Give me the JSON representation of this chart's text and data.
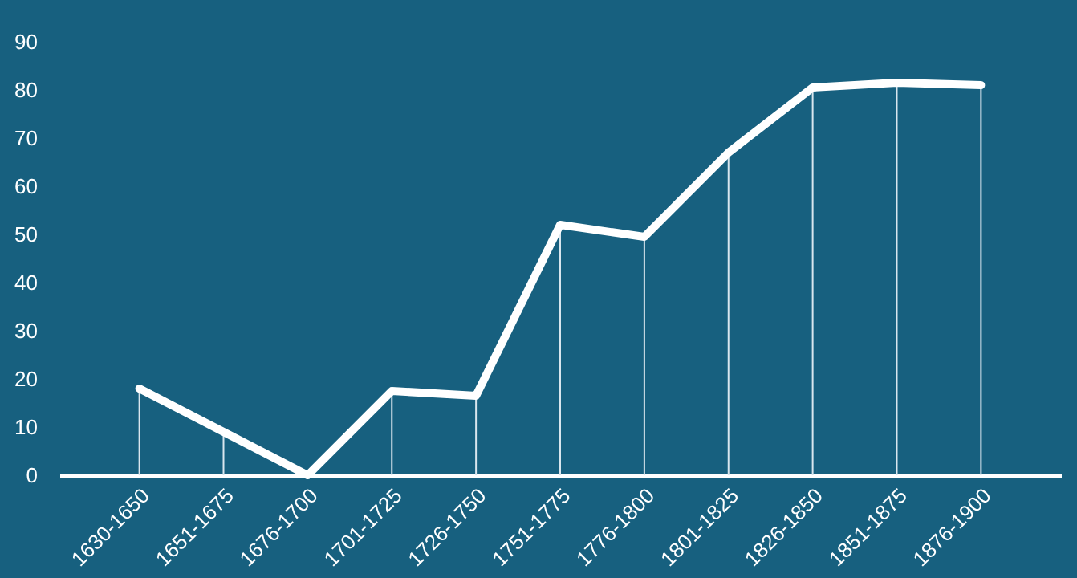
{
  "chart_data": {
    "type": "line",
    "categories": [
      "1630-1650",
      "1651-1675",
      "1676-1700",
      "1701-1725",
      "1726-1750",
      "1751-1775",
      "1776-1800",
      "1801-1825",
      "1826-1850",
      "1851-1875",
      "1876-1900"
    ],
    "series": [
      {
        "color": "#ffffff",
        "values": [
          18,
          9,
          0,
          17.5,
          16.5,
          52,
          49.5,
          67,
          80.5,
          81.5,
          81
        ]
      },
      {
        "type": "bar",
        "color": "#d9e6ee",
        "values": [
          18,
          9,
          0,
          17.5,
          16.5,
          52,
          49.5,
          67,
          80.5,
          81.5,
          81
        ]
      }
    ],
    "ylim": [
      0,
      90
    ],
    "yticks": [
      0,
      10,
      20,
      30,
      40,
      50,
      60,
      70,
      80,
      90
    ],
    "grid": false,
    "marker": "none",
    "line_style": "solid"
  }
}
